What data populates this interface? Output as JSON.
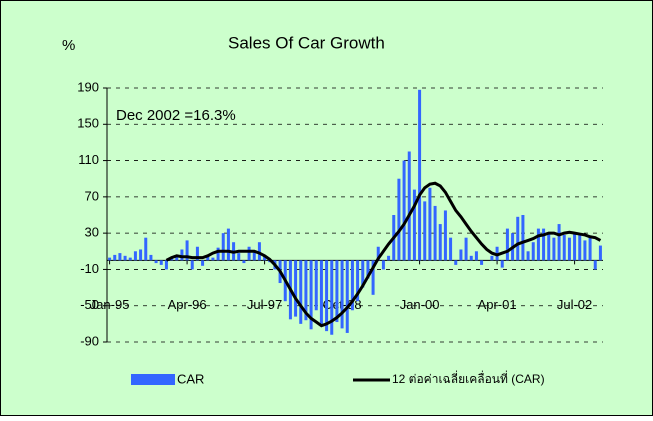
{
  "chart_data": {
    "type": "bar_line",
    "title": "Sales Of  Car Growth",
    "y_label": "%",
    "annotation": "Dec 2002 =16.3%",
    "categories": [
      "Jan-95",
      null,
      null,
      null,
      null,
      null,
      null,
      null,
      null,
      null,
      null,
      null,
      null,
      null,
      null,
      "Apr-96",
      null,
      null,
      null,
      null,
      null,
      null,
      null,
      null,
      null,
      null,
      null,
      null,
      null,
      null,
      "Jul-97",
      null,
      null,
      null,
      null,
      null,
      null,
      null,
      null,
      null,
      null,
      null,
      null,
      null,
      null,
      "Oct-98",
      null,
      null,
      null,
      null,
      null,
      null,
      null,
      null,
      null,
      null,
      null,
      null,
      null,
      null,
      "Jan-00",
      null,
      null,
      null,
      null,
      null,
      null,
      null,
      null,
      null,
      null,
      null,
      null,
      null,
      null,
      "Apr-01",
      null,
      null,
      null,
      null,
      null,
      null,
      null,
      null,
      null,
      null,
      null,
      null,
      null,
      null,
      "Jul-02",
      null,
      null,
      null,
      null,
      null
    ],
    "series": [
      {
        "name": "CAR",
        "type": "bar",
        "color": "#3366ff",
        "values": [
          3,
          6,
          8,
          5,
          3,
          10,
          12,
          25,
          6,
          -3,
          -5,
          -10,
          2,
          5,
          12,
          22,
          -10,
          15,
          -6,
          5,
          3,
          14,
          30,
          35,
          20,
          8,
          -3,
          15,
          10,
          20,
          5,
          -2,
          -10,
          -25,
          -45,
          -65,
          -62,
          -70,
          -66,
          -76,
          -55,
          -72,
          -78,
          -82,
          -68,
          -75,
          -80,
          -55,
          -45,
          -30,
          -20,
          -38,
          15,
          -10,
          5,
          50,
          90,
          110,
          120,
          78,
          188,
          65,
          80,
          60,
          40,
          55,
          25,
          -5,
          12,
          25,
          5,
          10,
          -5,
          0,
          5,
          15,
          -8,
          35,
          30,
          48,
          50,
          10,
          20,
          35,
          35,
          30,
          25,
          40,
          28,
          25,
          30,
          30,
          22,
          25,
          -10,
          16.3
        ]
      },
      {
        "name": "12 ต่อค่าเฉลี่ยเคลื่อนที่ (CAR)",
        "type": "line",
        "color": "#000000",
        "values": [
          null,
          null,
          null,
          null,
          null,
          null,
          null,
          null,
          null,
          null,
          null,
          0,
          3,
          5,
          4,
          4,
          3,
          3,
          3,
          5,
          8,
          10,
          10,
          10,
          9,
          10,
          10,
          10,
          10,
          8,
          5,
          1,
          -5,
          -12,
          -22,
          -32,
          -42,
          -50,
          -58,
          -64,
          -68,
          -72,
          -70,
          -67,
          -63,
          -58,
          -52,
          -45,
          -37,
          -28,
          -18,
          -8,
          2,
          10,
          18,
          25,
          32,
          40,
          50,
          60,
          72,
          80,
          84,
          85,
          82,
          75,
          65,
          55,
          48,
          40,
          32,
          25,
          18,
          12,
          8,
          6,
          8,
          10,
          14,
          18,
          20,
          22,
          24,
          27,
          28,
          30,
          30,
          28,
          30,
          31,
          30,
          29,
          28,
          26,
          25,
          22
        ]
      }
    ],
    "ylim": [
      -90,
      190
    ],
    "yticks": [
      -90,
      -50,
      -10,
      30,
      70,
      110,
      150,
      190
    ],
    "grid": true,
    "legend": "bottom"
  }
}
